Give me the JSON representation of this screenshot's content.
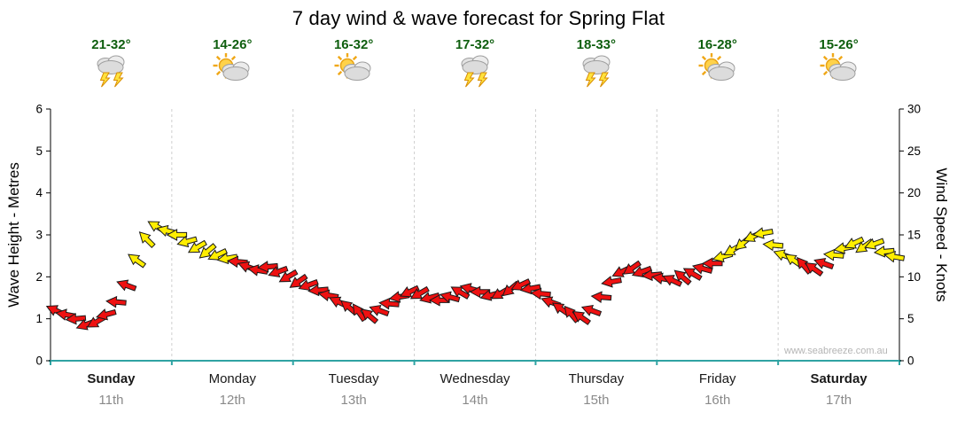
{
  "watermark": "www.seabreeze.com.au",
  "chart_data": {
    "type": "scatter",
    "subtype": "wind-direction-arrows",
    "title": "7 day wind & wave forecast for Spring Flat",
    "left_axis": {
      "label": "Wave Height - Metres",
      "range": [
        0,
        6
      ],
      "ticks": [
        0,
        1,
        2,
        3,
        4,
        5,
        6
      ]
    },
    "right_axis": {
      "label": "Wind Speed - Knots",
      "range": [
        0,
        30
      ],
      "ticks": [
        0,
        5,
        10,
        15,
        20,
        25,
        30
      ]
    },
    "x_axis": {
      "span_hours": 168,
      "grid": "dashed-day-separators"
    },
    "days": [
      {
        "name": "Sunday",
        "date": "11th",
        "temps": "21-32°",
        "icon": "storm",
        "bold": true
      },
      {
        "name": "Monday",
        "date": "12th",
        "temps": "14-26°",
        "icon": "sun-cloud",
        "bold": false
      },
      {
        "name": "Tuesday",
        "date": "13th",
        "temps": "16-32°",
        "icon": "sun-cloud",
        "bold": false
      },
      {
        "name": "Wednesday",
        "date": "14th",
        "temps": "17-32°",
        "icon": "storm",
        "bold": false
      },
      {
        "name": "Thursday",
        "date": "15th",
        "temps": "18-33°",
        "icon": "storm",
        "bold": false
      },
      {
        "name": "Friday",
        "date": "16th",
        "temps": "16-28°",
        "icon": "sun-cloud",
        "bold": false
      },
      {
        "name": "Saturday",
        "date": "17th",
        "temps": "15-26°",
        "icon": "sun-cloud",
        "bold": true
      }
    ],
    "wind": {
      "unit": "knots",
      "yellow_min_knots": 12,
      "colors": {
        "low": "#ee1111",
        "high": "#ffee00",
        "outline": "#1a1a1a"
      },
      "points_format": [
        "hour",
        "knots",
        "direction_deg"
      ],
      "points": [
        [
          0,
          6.0,
          205
        ],
        [
          2,
          5.5,
          190
        ],
        [
          4,
          5.0,
          175
        ],
        [
          6,
          4.3,
          160
        ],
        [
          8,
          4.6,
          150
        ],
        [
          10,
          5.5,
          165
        ],
        [
          12,
          7.0,
          185
        ],
        [
          14,
          9.0,
          200
        ],
        [
          16,
          12.0,
          215
        ],
        [
          18,
          14.5,
          225
        ],
        [
          20,
          16.0,
          210
        ],
        [
          22,
          15.5,
          195
        ],
        [
          24,
          15.0,
          180
        ],
        [
          26,
          14.2,
          165
        ],
        [
          28,
          13.5,
          150
        ],
        [
          30,
          13.0,
          140
        ],
        [
          32,
          12.6,
          155
        ],
        [
          34,
          12.2,
          170
        ],
        [
          36,
          11.8,
          185
        ],
        [
          38,
          11.2,
          200
        ],
        [
          40,
          10.8,
          190
        ],
        [
          42,
          11.2,
          175
        ],
        [
          44,
          10.6,
          160
        ],
        [
          46,
          10.0,
          150
        ],
        [
          48,
          9.4,
          145
        ],
        [
          50,
          9.0,
          160
        ],
        [
          52,
          8.4,
          175
        ],
        [
          54,
          7.8,
          190
        ],
        [
          56,
          7.0,
          205
        ],
        [
          58,
          6.4,
          220
        ],
        [
          60,
          5.8,
          235
        ],
        [
          62,
          5.4,
          220
        ],
        [
          64,
          6.0,
          200
        ],
        [
          66,
          6.8,
          185
        ],
        [
          68,
          7.6,
          170
        ],
        [
          70,
          8.2,
          155
        ],
        [
          72,
          8.0,
          150
        ],
        [
          74,
          7.5,
          165
        ],
        [
          76,
          7.2,
          180
        ],
        [
          78,
          7.6,
          195
        ],
        [
          80,
          8.2,
          210
        ],
        [
          82,
          8.6,
          195
        ],
        [
          84,
          8.2,
          180
        ],
        [
          86,
          7.8,
          165
        ],
        [
          88,
          8.0,
          150
        ],
        [
          90,
          8.5,
          140
        ],
        [
          92,
          9.0,
          155
        ],
        [
          94,
          8.6,
          170
        ],
        [
          96,
          8.0,
          185
        ],
        [
          98,
          7.0,
          200
        ],
        [
          100,
          6.2,
          215
        ],
        [
          102,
          5.6,
          230
        ],
        [
          104,
          5.2,
          215
        ],
        [
          106,
          6.0,
          200
        ],
        [
          108,
          7.6,
          185
        ],
        [
          110,
          9.4,
          170
        ],
        [
          112,
          10.6,
          155
        ],
        [
          114,
          11.0,
          145
        ],
        [
          116,
          10.6,
          160
        ],
        [
          118,
          10.2,
          175
        ],
        [
          120,
          9.8,
          190
        ],
        [
          122,
          9.6,
          205
        ],
        [
          124,
          10.0,
          220
        ],
        [
          126,
          10.4,
          210
        ],
        [
          128,
          11.0,
          195
        ],
        [
          130,
          11.6,
          180
        ],
        [
          132,
          12.4,
          165
        ],
        [
          134,
          13.2,
          150
        ],
        [
          136,
          14.0,
          140
        ],
        [
          138,
          14.8,
          155
        ],
        [
          140,
          15.2,
          170
        ],
        [
          142,
          13.8,
          185
        ],
        [
          144,
          12.6,
          200
        ],
        [
          146,
          12.0,
          215
        ],
        [
          148,
          11.4,
          230
        ],
        [
          150,
          11.0,
          215
        ],
        [
          152,
          11.6,
          200
        ],
        [
          154,
          12.6,
          185
        ],
        [
          156,
          13.4,
          170
        ],
        [
          158,
          14.0,
          155
        ],
        [
          160,
          13.6,
          145
        ],
        [
          162,
          13.9,
          160
        ],
        [
          164,
          13.0,
          175
        ],
        [
          166,
          12.4,
          190
        ]
      ]
    }
  }
}
